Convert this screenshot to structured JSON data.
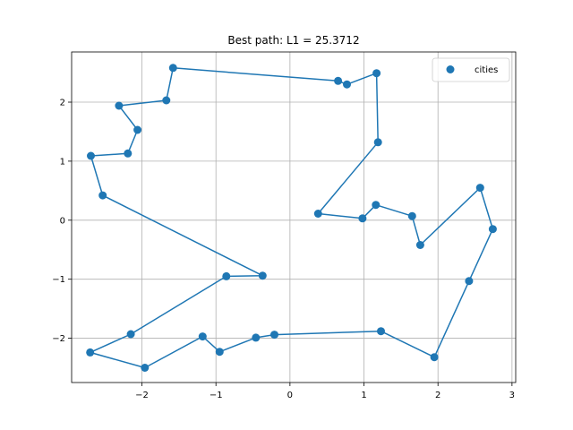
{
  "chart_data": {
    "type": "line",
    "title": "Best path: L1 = 25.3712",
    "xlabel": "",
    "ylabel": "",
    "xlim": [
      -2.95,
      3.05
    ],
    "ylim": [
      -2.75,
      2.85
    ],
    "xticks": [
      -2,
      -1,
      0,
      1,
      2,
      3
    ],
    "yticks": [
      -2,
      -1,
      0,
      1,
      2
    ],
    "xtick_labels": [
      "−2",
      "−1",
      "0",
      "1",
      "2",
      "3"
    ],
    "ytick_labels": [
      "−2",
      "−1",
      "0",
      "1",
      "2"
    ],
    "grid": true,
    "legend": {
      "placement": "top-right",
      "entries": [
        "cities"
      ]
    },
    "colors": {
      "series": "#1f77b4",
      "grid": "#b0b0b0",
      "axes": "#000000"
    },
    "series": [
      {
        "name": "cities",
        "marker": "circle",
        "points": [
          [
            -1.58,
            2.58
          ],
          [
            0.65,
            2.36
          ],
          [
            0.77,
            2.3
          ],
          [
            1.17,
            2.49
          ],
          [
            1.19,
            1.32
          ],
          [
            0.38,
            0.11
          ],
          [
            0.98,
            0.03
          ],
          [
            1.16,
            0.26
          ],
          [
            1.65,
            0.07
          ],
          [
            1.76,
            -0.42
          ],
          [
            2.57,
            0.55
          ],
          [
            2.74,
            -0.15
          ],
          [
            2.42,
            -1.03
          ],
          [
            1.95,
            -2.32
          ],
          [
            1.23,
            -1.88
          ],
          [
            -0.21,
            -1.94
          ],
          [
            -0.46,
            -1.99
          ],
          [
            -0.95,
            -2.23
          ],
          [
            -1.18,
            -1.97
          ],
          [
            -1.96,
            -2.5
          ],
          [
            -2.7,
            -2.24
          ],
          [
            -2.15,
            -1.93
          ],
          [
            -0.86,
            -0.95
          ],
          [
            -0.37,
            -0.94
          ],
          [
            -2.53,
            0.42
          ],
          [
            -2.69,
            1.09
          ],
          [
            -2.19,
            1.13
          ],
          [
            -2.06,
            1.53
          ],
          [
            -2.31,
            1.94
          ],
          [
            -1.67,
            2.03
          ],
          [
            -1.58,
            2.58
          ]
        ]
      }
    ]
  }
}
